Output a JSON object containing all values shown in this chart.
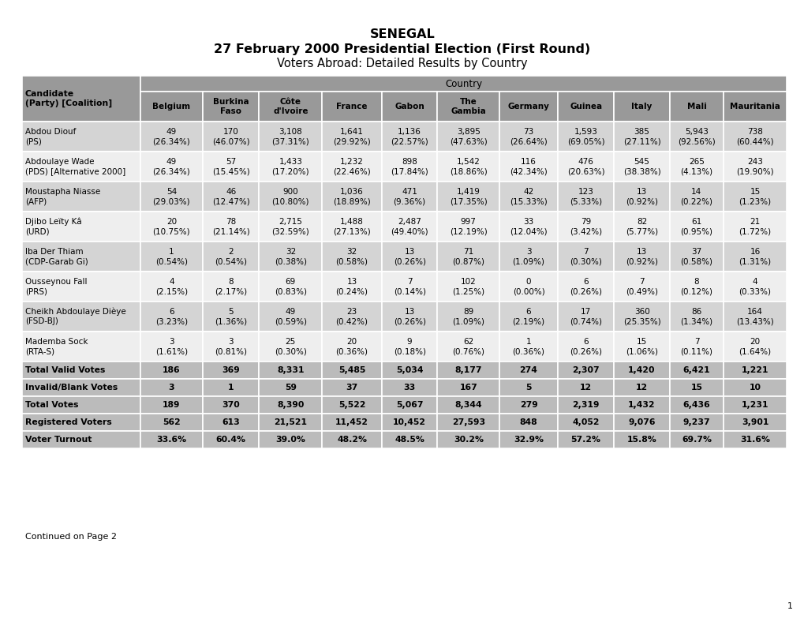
{
  "title1": "SENEGAL",
  "title2": "27 February 2000 Presidential Election (First Round)",
  "title3": "Voters Abroad: Detailed Results by Country",
  "country_header": "Country",
  "col_header1": "Candidate\n(Party) [Coalition]",
  "countries": [
    "Belgium",
    "Burkina\nFaso",
    "Côte\nd'Ivoire",
    "France",
    "Gabon",
    "The\nGambia",
    "Germany",
    "Guinea",
    "Italy",
    "Mali",
    "Mauritania"
  ],
  "candidates": [
    [
      "Abdou Diouf\n(PS)",
      "49\n(26.34%)",
      "170\n(46.07%)",
      "3,108\n(37.31%)",
      "1,641\n(29.92%)",
      "1,136\n(22.57%)",
      "3,895\n(47.63%)",
      "73\n(26.64%)",
      "1,593\n(69.05%)",
      "385\n(27.11%)",
      "5,943\n(92.56%)",
      "738\n(60.44%)"
    ],
    [
      "Abdoulaye Wade\n(PDS) [Alternative 2000]",
      "49\n(26.34%)",
      "57\n(15.45%)",
      "1,433\n(17.20%)",
      "1,232\n(22.46%)",
      "898\n(17.84%)",
      "1,542\n(18.86%)",
      "116\n(42.34%)",
      "476\n(20.63%)",
      "545\n(38.38%)",
      "265\n(4.13%)",
      "243\n(19.90%)"
    ],
    [
      "Moustapha Niasse\n(AFP)",
      "54\n(29.03%)",
      "46\n(12.47%)",
      "900\n(10.80%)",
      "1,036\n(18.89%)",
      "471\n(9.36%)",
      "1,419\n(17.35%)",
      "42\n(15.33%)",
      "123\n(5.33%)",
      "13\n(0.92%)",
      "14\n(0.22%)",
      "15\n(1.23%)"
    ],
    [
      "Djibo Leïty Kâ\n(URD)",
      "20\n(10.75%)",
      "78\n(21.14%)",
      "2,715\n(32.59%)",
      "1,488\n(27.13%)",
      "2,487\n(49.40%)",
      "997\n(12.19%)",
      "33\n(12.04%)",
      "79\n(3.42%)",
      "82\n(5.77%)",
      "61\n(0.95%)",
      "21\n(1.72%)"
    ],
    [
      "Iba Der Thiam\n(CDP-Garab Gi)",
      "1\n(0.54%)",
      "2\n(0.54%)",
      "32\n(0.38%)",
      "32\n(0.58%)",
      "13\n(0.26%)",
      "71\n(0.87%)",
      "3\n(1.09%)",
      "7\n(0.30%)",
      "13\n(0.92%)",
      "37\n(0.58%)",
      "16\n(1.31%)"
    ],
    [
      "Ousseynou Fall\n(PRS)",
      "4\n(2.15%)",
      "8\n(2.17%)",
      "69\n(0.83%)",
      "13\n(0.24%)",
      "7\n(0.14%)",
      "102\n(1.25%)",
      "0\n(0.00%)",
      "6\n(0.26%)",
      "7\n(0.49%)",
      "8\n(0.12%)",
      "4\n(0.33%)"
    ],
    [
      "Cheikh Abdoulaye Dièye\n(FSD-BJ)",
      "6\n(3.23%)",
      "5\n(1.36%)",
      "49\n(0.59%)",
      "23\n(0.42%)",
      "13\n(0.26%)",
      "89\n(1.09%)",
      "6\n(2.19%)",
      "17\n(0.74%)",
      "360\n(25.35%)",
      "86\n(1.34%)",
      "164\n(13.43%)"
    ],
    [
      "Mademba Sock\n(RTA-S)",
      "3\n(1.61%)",
      "3\n(0.81%)",
      "25\n(0.30%)",
      "20\n(0.36%)",
      "9\n(0.18%)",
      "62\n(0.76%)",
      "1\n(0.36%)",
      "6\n(0.26%)",
      "15\n(1.06%)",
      "7\n(0.11%)",
      "20\n(1.64%)"
    ]
  ],
  "summary_rows": [
    [
      "Total Valid Votes",
      "186",
      "369",
      "8,331",
      "5,485",
      "5,034",
      "8,177",
      "274",
      "2,307",
      "1,420",
      "6,421",
      "1,221"
    ],
    [
      "Invalid/Blank Votes",
      "3",
      "1",
      "59",
      "37",
      "33",
      "167",
      "5",
      "12",
      "12",
      "15",
      "10"
    ],
    [
      "Total Votes",
      "189",
      "370",
      "8,390",
      "5,522",
      "5,067",
      "8,344",
      "279",
      "2,319",
      "1,432",
      "6,436",
      "1,231"
    ],
    [
      "Registered Voters",
      "562",
      "613",
      "21,521",
      "11,452",
      "10,452",
      "27,593",
      "848",
      "4,052",
      "9,076",
      "9,237",
      "3,901"
    ],
    [
      "Voter Turnout",
      "33.6%",
      "60.4%",
      "39.0%",
      "48.2%",
      "48.5%",
      "30.2%",
      "32.9%",
      "57.2%",
      "15.8%",
      "69.7%",
      "31.6%"
    ]
  ],
  "footer": "Continued on Page 2",
  "page_number": "1",
  "header_bg": "#999999",
  "subheader_bg": "#aaaaaa",
  "odd_row_bg": "#d4d4d4",
  "even_row_bg": "#eeeeee",
  "summary_bg": "#bbbbbb",
  "white": "#ffffff"
}
